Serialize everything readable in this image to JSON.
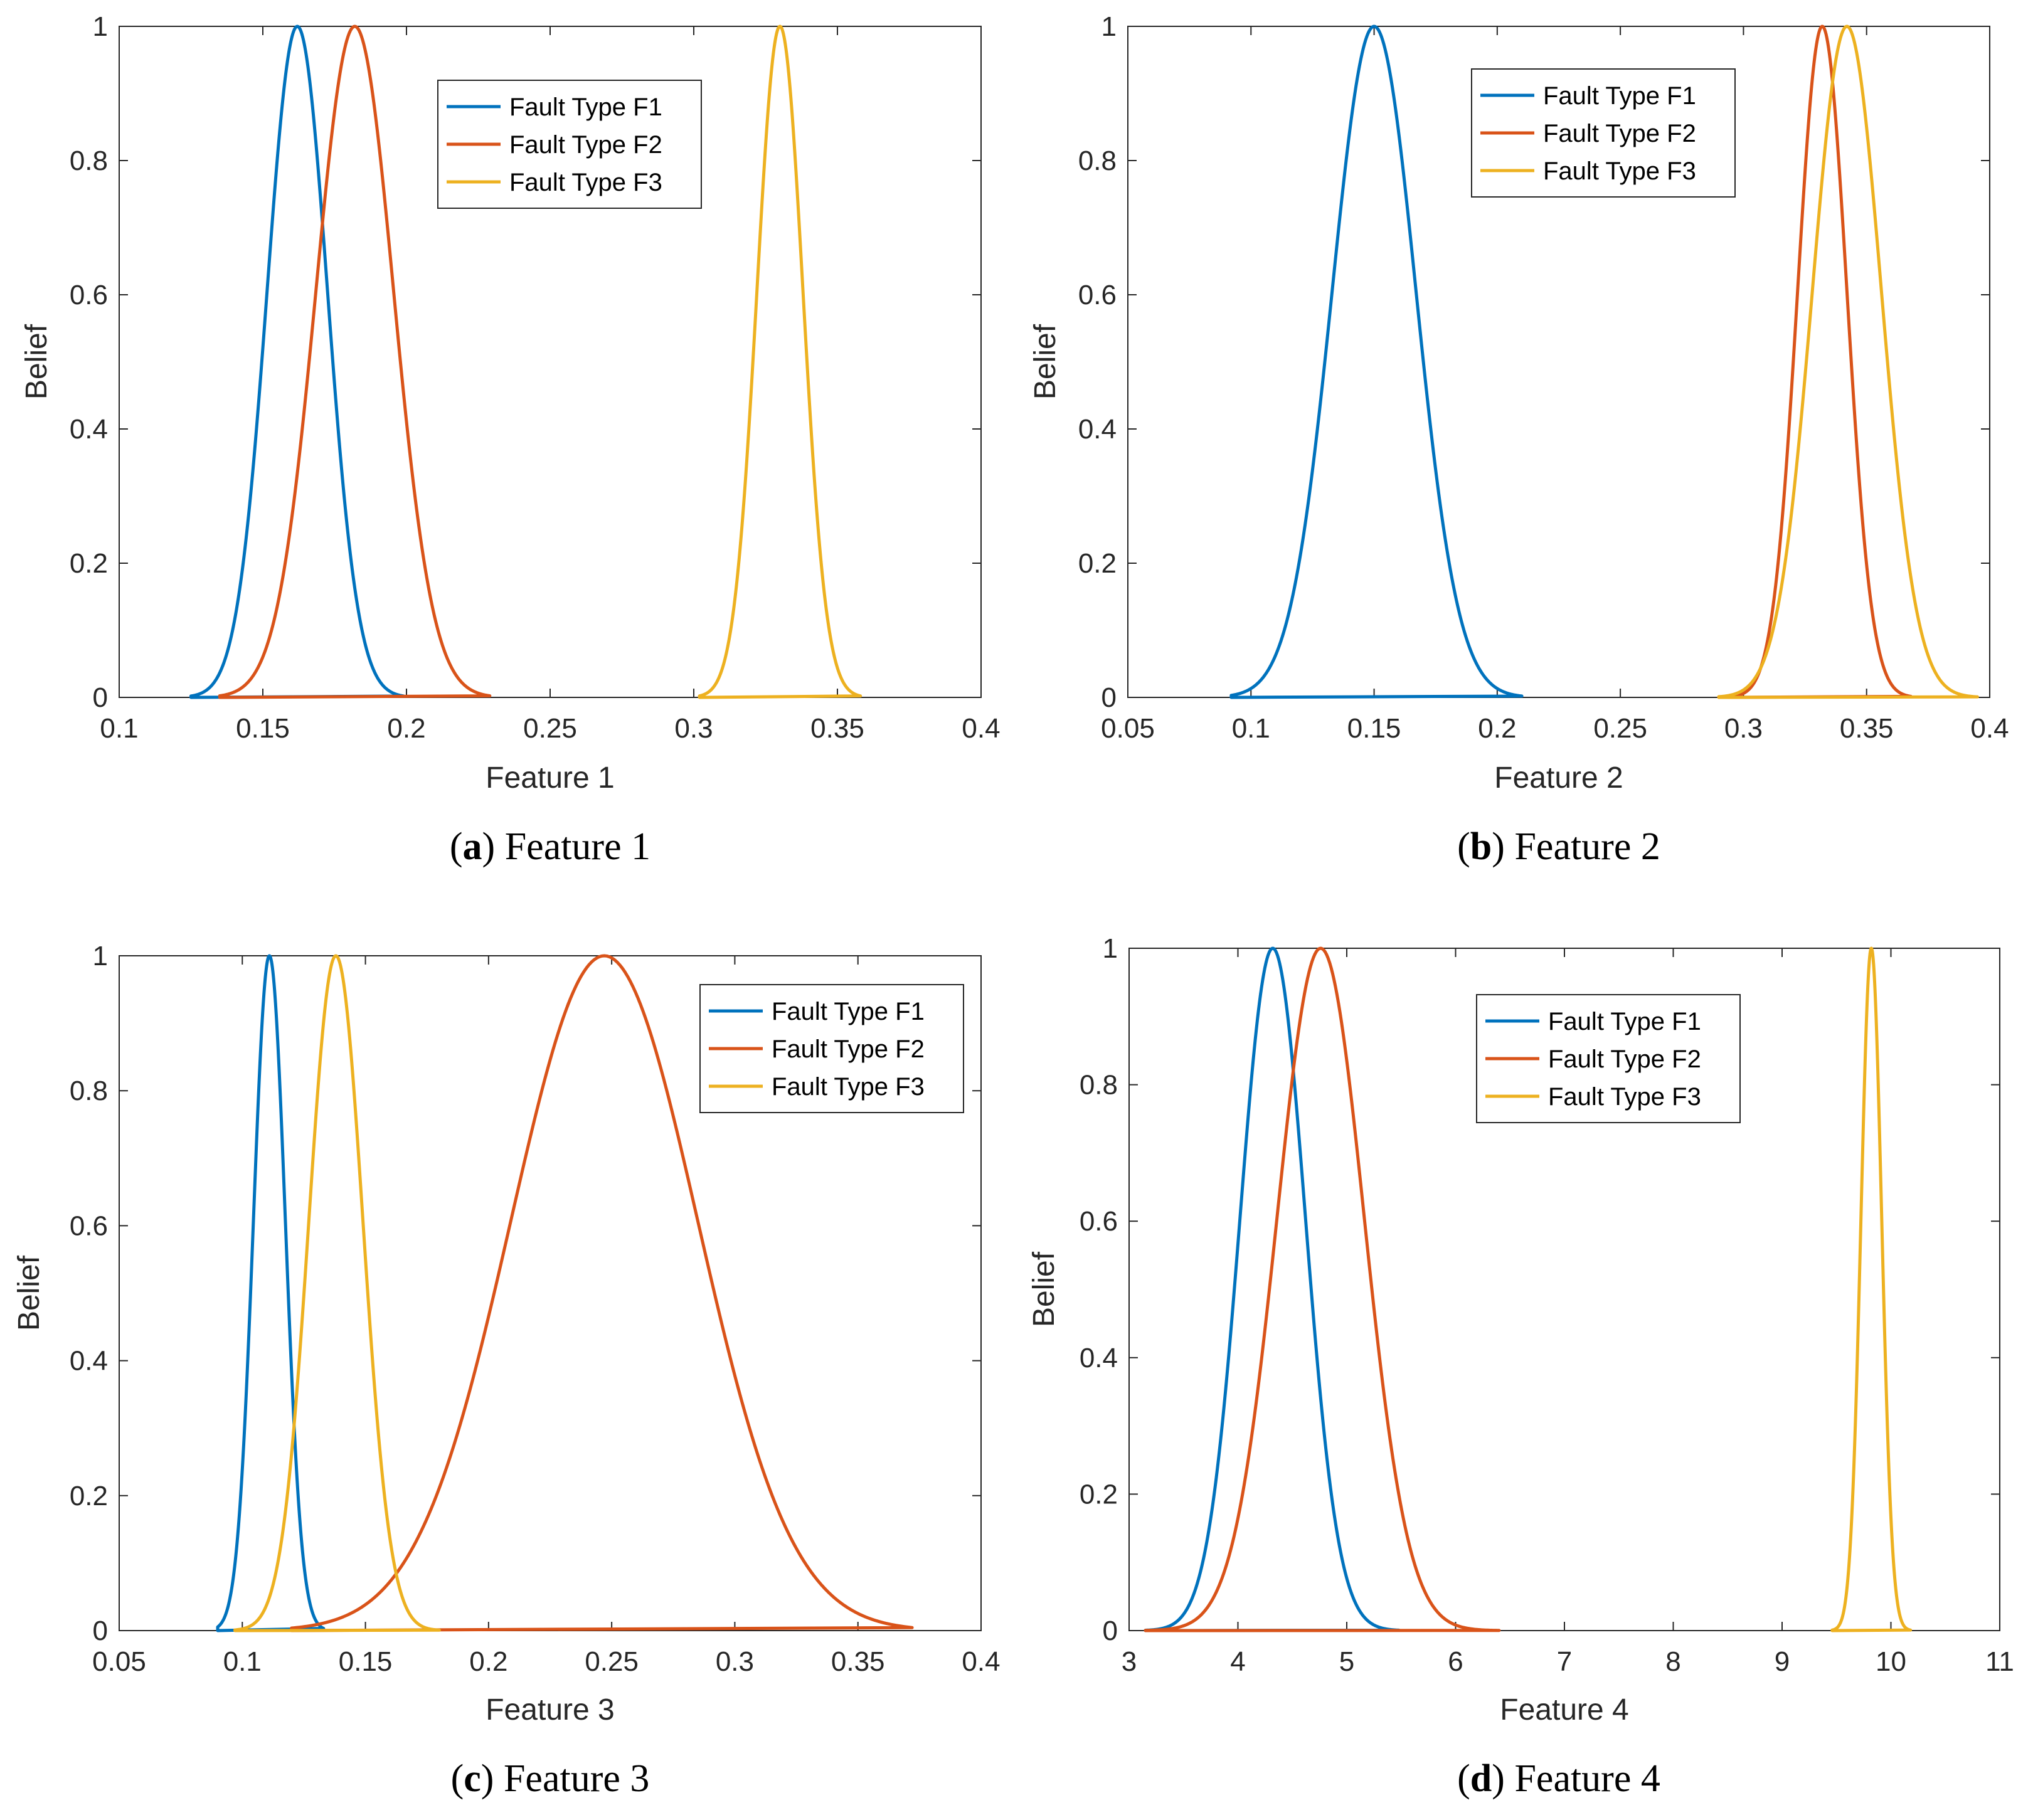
{
  "colors": {
    "F1": "#0072BD",
    "F2": "#D95319",
    "F3": "#EDB120",
    "axis": "#262626"
  },
  "chart_data": [
    {
      "type": "line",
      "caption_letter": "a",
      "caption_text": "Feature 1",
      "xlabel": "Feature 1",
      "ylabel": "Belief",
      "xlim": [
        0.1,
        0.4
      ],
      "ylim": [
        0,
        1
      ],
      "x_ticks": [
        0.1,
        0.15,
        0.2,
        0.25,
        0.3,
        0.35,
        0.4
      ],
      "x_tick_labels": [
        "0.1",
        "0.15",
        "0.2",
        "0.25",
        "0.3",
        "0.35",
        "0.4"
      ],
      "y_ticks": [
        0,
        0.2,
        0.4,
        0.6,
        0.8,
        1
      ],
      "y_tick_labels": [
        "0",
        "0.2",
        "0.4",
        "0.6",
        "0.8",
        "1"
      ],
      "legend_location": "top-center",
      "series": [
        {
          "name": "Fault Type F1",
          "color_key": "F1",
          "mean": 0.162,
          "sigma": 0.0105,
          "range": [
            0.125,
            0.199
          ]
        },
        {
          "name": "Fault Type F2",
          "color_key": "F2",
          "mean": 0.182,
          "sigma": 0.0135,
          "range": [
            0.135,
            0.229
          ]
        },
        {
          "name": "Fault Type F3",
          "color_key": "F3",
          "mean": 0.33,
          "sigma": 0.008,
          "range": [
            0.302,
            0.358
          ]
        }
      ]
    },
    {
      "type": "line",
      "caption_letter": "b",
      "caption_text": "Feature 2",
      "xlabel": "Feature 2",
      "ylabel": "Belief",
      "xlim": [
        0.05,
        0.4
      ],
      "ylim": [
        0,
        1
      ],
      "x_ticks": [
        0.05,
        0.1,
        0.15,
        0.2,
        0.25,
        0.3,
        0.35,
        0.4
      ],
      "x_tick_labels": [
        "0.05",
        "0.1",
        "0.15",
        "0.2",
        "0.25",
        "0.3",
        "0.35",
        "0.4"
      ],
      "y_ticks": [
        0,
        0.2,
        0.4,
        0.6,
        0.8,
        1
      ],
      "y_tick_labels": [
        "0",
        "0.2",
        "0.4",
        "0.6",
        "0.8",
        "1"
      ],
      "legend_location": "top-right",
      "series": [
        {
          "name": "Fault Type F1",
          "color_key": "F1",
          "mean": 0.15,
          "sigma": 0.017,
          "range": [
            0.092,
            0.21
          ]
        },
        {
          "name": "Fault Type F2",
          "color_key": "F2",
          "mean": 0.332,
          "sigma": 0.01,
          "range": [
            0.29,
            0.368
          ]
        },
        {
          "name": "Fault Type F3",
          "color_key": "F3",
          "mean": 0.342,
          "sigma": 0.014,
          "range": [
            0.29,
            0.395
          ]
        }
      ]
    },
    {
      "type": "line",
      "caption_letter": "c",
      "caption_text": "Feature 3",
      "xlabel": "Feature 3",
      "ylabel": "Belief",
      "xlim": [
        0.05,
        0.4
      ],
      "ylim": [
        0,
        1
      ],
      "x_ticks": [
        0.05,
        0.1,
        0.15,
        0.2,
        0.25,
        0.3,
        0.35,
        0.4
      ],
      "x_tick_labels": [
        "0.05",
        "0.1",
        "0.15",
        "0.2",
        "0.25",
        "0.3",
        "0.35",
        "0.4"
      ],
      "y_ticks": [
        0,
        0.2,
        0.4,
        0.6,
        0.8,
        1
      ],
      "y_tick_labels": [
        "0",
        "0.2",
        "0.4",
        "0.6",
        "0.8",
        "1"
      ],
      "legend_location": "top-right",
      "series": [
        {
          "name": "Fault Type F1",
          "color_key": "F1",
          "mean": 0.111,
          "sigma": 0.0065,
          "range": [
            0.09,
            0.133
          ]
        },
        {
          "name": "Fault Type F2",
          "color_key": "F2",
          "mean": 0.247,
          "sigma": 0.038,
          "range": [
            0.12,
            0.372
          ]
        },
        {
          "name": "Fault Type F3",
          "color_key": "F3",
          "mean": 0.138,
          "sigma": 0.011,
          "range": [
            0.097,
            0.18
          ]
        }
      ]
    },
    {
      "type": "line",
      "caption_letter": "d",
      "caption_text": "Feature 4",
      "xlabel": "Feature 4",
      "ylabel": "Belief",
      "xlim": [
        3,
        11
      ],
      "ylim": [
        0,
        1
      ],
      "x_ticks": [
        3,
        4,
        5,
        6,
        7,
        8,
        9,
        10,
        11
      ],
      "x_tick_labels": [
        "3",
        "4",
        "5",
        "6",
        "7",
        "8",
        "9",
        "10",
        "11"
      ],
      "y_ticks": [
        0,
        0.2,
        0.4,
        0.6,
        0.8,
        1
      ],
      "y_tick_labels": [
        "0",
        "0.2",
        "0.4",
        "0.6",
        "0.8",
        "1"
      ],
      "legend_location": "top-center",
      "series": [
        {
          "name": "Fault Type F1",
          "color_key": "F1",
          "mean": 4.32,
          "sigma": 0.3,
          "range": [
            3.15,
            5.48
          ]
        },
        {
          "name": "Fault Type F2",
          "color_key": "F2",
          "mean": 4.76,
          "sigma": 0.4,
          "range": [
            3.15,
            6.4
          ]
        },
        {
          "name": "Fault Type F3",
          "color_key": "F3",
          "mean": 9.82,
          "sigma": 0.095,
          "range": [
            9.46,
            10.18
          ]
        }
      ]
    }
  ]
}
